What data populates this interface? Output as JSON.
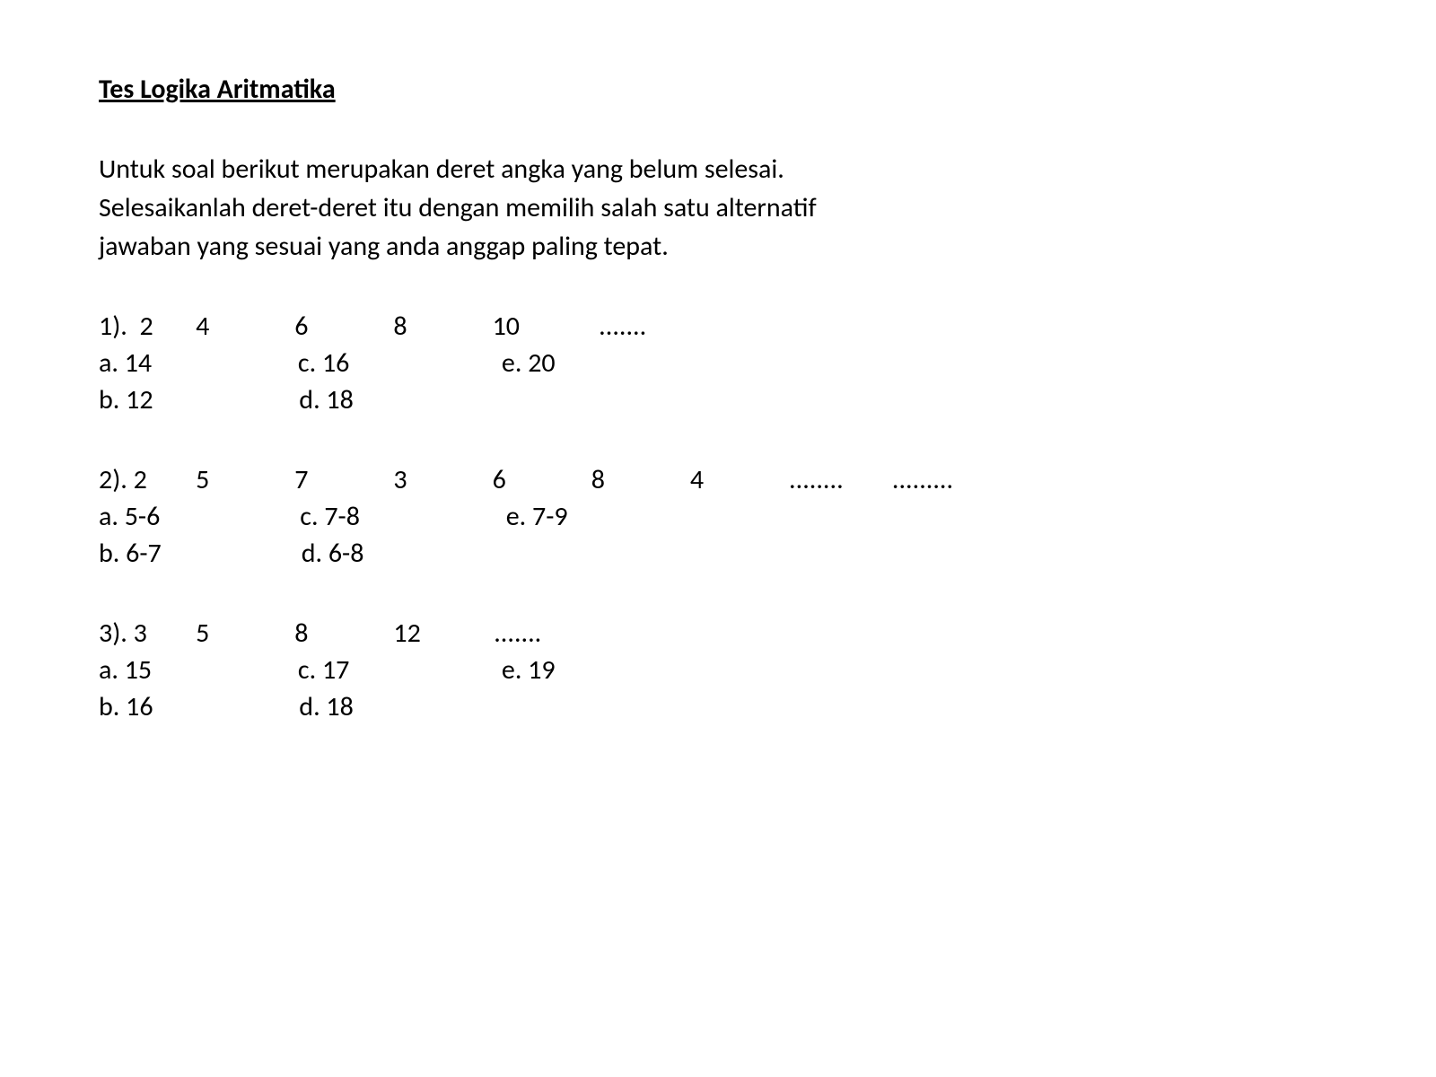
{
  "title": "Tes Logika Aritmatika",
  "instructions": {
    "line1": "Untuk soal berikut merupakan deret angka yang belum selesai.",
    "line2": "Selesaikanlah deret-deret itu dengan memilih salah satu alternatif",
    "line3": "jawaban yang sesuai yang anda anggap paling tepat."
  },
  "q1": {
    "seq": "1).  2       4              6              8              10             .......",
    "ansRow1": "a. 14                        c. 16                         e. 20",
    "ansRow2": "b. 12                        d. 18"
  },
  "q2": {
    "seq": "2). 2        5              7              3              6              8              4              ........        .........",
    "ansRow1": "a. 5-6                       c. 7-8                        e. 7-9",
    "ansRow2": "b. 6-7                       d. 6-8"
  },
  "q3": {
    "seq": "3). 3        5              8              12            .......",
    "ansRow1": "a. 15                        c. 17                         e. 19",
    "ansRow2": "b. 16                        d. 18"
  },
  "colors": {
    "background": "#ffffff",
    "text": "#000000"
  },
  "font": {
    "family": "Calibri",
    "size_pt": 24,
    "title_weight": "bold"
  }
}
